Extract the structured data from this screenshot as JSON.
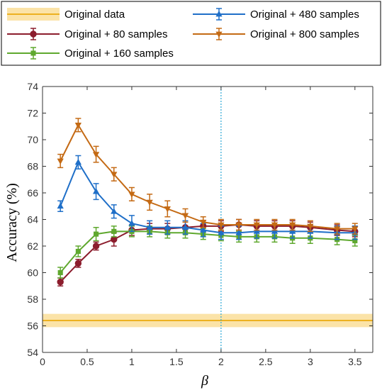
{
  "chart_data": {
    "type": "line",
    "xlabel": "β",
    "ylabel": "Accuracy (%)",
    "xlim": [
      0,
      3.7
    ],
    "ylim": [
      54,
      74
    ],
    "xticks": [
      0,
      0.5,
      1,
      1.5,
      2,
      2.5,
      3,
      3.5
    ],
    "yticks": [
      54,
      56,
      58,
      60,
      62,
      64,
      66,
      68,
      70,
      72,
      74
    ],
    "vline_x": 2,
    "baseline": {
      "name": "Original  data",
      "value": 56.4,
      "band": [
        55.9,
        56.9
      ],
      "color": "#EDB120",
      "band_color": "#FBE3A8"
    },
    "x": [
      0.2,
      0.4,
      0.6,
      0.8,
      1.0,
      1.2,
      1.4,
      1.6,
      1.8,
      2.0,
      2.2,
      2.4,
      2.6,
      2.8,
      3.0,
      3.3,
      3.5
    ],
    "series": [
      {
        "name": "Original  + 80 samples",
        "color": "#8C1D2D",
        "marker": "circle",
        "values": [
          59.3,
          60.7,
          62.0,
          62.5,
          63.2,
          63.3,
          63.3,
          63.4,
          63.5,
          63.5,
          63.6,
          63.5,
          63.5,
          63.5,
          63.4,
          63.2,
          63.1
        ],
        "errors": [
          0.3,
          0.3,
          0.3,
          0.5,
          0.4,
          0.4,
          0.4,
          0.4,
          0.4,
          0.4,
          0.4,
          0.4,
          0.4,
          0.4,
          0.4,
          0.4,
          0.4
        ]
      },
      {
        "name": "Original  + 160 samples",
        "color": "#5FA82E",
        "marker": "square",
        "values": [
          60.0,
          61.6,
          62.9,
          63.1,
          63.1,
          63.1,
          63.0,
          63.0,
          62.9,
          62.8,
          62.7,
          62.7,
          62.7,
          62.6,
          62.6,
          62.5,
          62.4
        ],
        "errors": [
          0.4,
          0.4,
          0.5,
          0.4,
          0.4,
          0.4,
          0.4,
          0.4,
          0.4,
          0.4,
          0.4,
          0.4,
          0.4,
          0.4,
          0.4,
          0.4,
          0.4
        ]
      },
      {
        "name": "Original  + 480 samples",
        "color": "#1F6FC8",
        "marker": "triangle-up",
        "values": [
          65.0,
          68.3,
          66.1,
          64.6,
          63.7,
          63.4,
          63.4,
          63.4,
          63.2,
          63.0,
          63.0,
          63.1,
          63.1,
          63.1,
          63.1,
          63.0,
          63.0
        ],
        "errors": [
          0.4,
          0.5,
          0.6,
          0.5,
          0.6,
          0.5,
          0.5,
          0.5,
          0.5,
          0.5,
          0.5,
          0.5,
          0.5,
          0.5,
          0.5,
          0.5,
          0.5
        ]
      },
      {
        "name": "Original  + 800 samples",
        "color": "#C46A14",
        "marker": "triangle-down",
        "values": [
          68.4,
          71.1,
          68.9,
          67.4,
          65.9,
          65.3,
          64.8,
          64.3,
          63.8,
          63.6,
          63.6,
          63.6,
          63.6,
          63.6,
          63.5,
          63.3,
          63.3
        ],
        "errors": [
          0.5,
          0.5,
          0.6,
          0.5,
          0.5,
          0.6,
          0.6,
          0.5,
          0.4,
          0.4,
          0.4,
          0.4,
          0.4,
          0.4,
          0.4,
          0.4,
          0.4
        ]
      }
    ]
  }
}
